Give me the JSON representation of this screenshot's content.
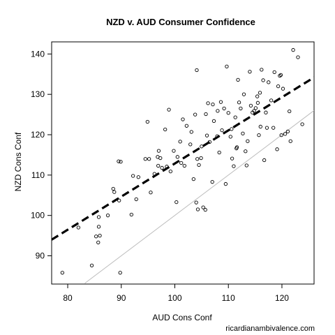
{
  "chart_data": {
    "type": "scatter",
    "title": "NZD v. AUD Consumer Confidence",
    "xlabel": "AUD Cons Conf",
    "ylabel": "NZD Cons Conf",
    "xlim": [
      77,
      126
    ],
    "ylim": [
      83,
      143
    ],
    "xticks": [
      80,
      90,
      100,
      110,
      120
    ],
    "yticks": [
      90,
      100,
      110,
      120,
      130,
      140
    ],
    "grid": false,
    "legend": "none",
    "points": [
      [
        79,
        85.8
      ],
      [
        82,
        97
      ],
      [
        84.5,
        87.6
      ],
      [
        85.3,
        94.8
      ],
      [
        85.8,
        99.6
      ],
      [
        85.8,
        97.2
      ],
      [
        85.7,
        93.3
      ],
      [
        86,
        95
      ],
      [
        87.5,
        100
      ],
      [
        88.5,
        106.6
      ],
      [
        88.7,
        105.8
      ],
      [
        89.6,
        103.7
      ],
      [
        89.5,
        113.4
      ],
      [
        89.9,
        113.3
      ],
      [
        89.8,
        85.8
      ],
      [
        91.9,
        100.2
      ],
      [
        92.2,
        109.8
      ],
      [
        92.8,
        104
      ],
      [
        93.2,
        109.5
      ],
      [
        94.5,
        114
      ],
      [
        94.9,
        123.2
      ],
      [
        95.2,
        114
      ],
      [
        95.5,
        105.7
      ],
      [
        96.2,
        110.3
      ],
      [
        96.8,
        114.5
      ],
      [
        96.9,
        112.3
      ],
      [
        97,
        116
      ],
      [
        97.3,
        114.2
      ],
      [
        97.6,
        111.8
      ],
      [
        98.2,
        121.3
      ],
      [
        98.5,
        112.1
      ],
      [
        98.9,
        126.2
      ],
      [
        99.2,
        110.9
      ],
      [
        99.8,
        116
      ],
      [
        100.3,
        103.3
      ],
      [
        100.5,
        114.5
      ],
      [
        101,
        118.3
      ],
      [
        101.2,
        113
      ],
      [
        101.5,
        123.8
      ],
      [
        101.8,
        112.3
      ],
      [
        102.2,
        122.2
      ],
      [
        102.9,
        117.6
      ],
      [
        103.1,
        120.7
      ],
      [
        103.5,
        109
      ],
      [
        103.8,
        125
      ],
      [
        104,
        103.2
      ],
      [
        104.1,
        136
      ],
      [
        104.2,
        114
      ],
      [
        104.3,
        101.5
      ],
      [
        104.5,
        112.5
      ],
      [
        104.9,
        114.2
      ],
      [
        105,
        117.1
      ],
      [
        105.3,
        102
      ],
      [
        105.7,
        101.4
      ],
      [
        105.8,
        125.1
      ],
      [
        106,
        119.8
      ],
      [
        106.2,
        127.8
      ],
      [
        106.5,
        118.2
      ],
      [
        107,
        108.3
      ],
      [
        107.1,
        127.5
      ],
      [
        107.3,
        123.4
      ],
      [
        107.9,
        119.6
      ],
      [
        108,
        125.9
      ],
      [
        108.3,
        115.6
      ],
      [
        108.6,
        128.1
      ],
      [
        108.8,
        121.1
      ],
      [
        109.2,
        126.5
      ],
      [
        109.5,
        107.8
      ],
      [
        109.7,
        136.9
      ],
      [
        110,
        125.4
      ],
      [
        110.4,
        119.5
      ],
      [
        110.6,
        121.4
      ],
      [
        110.7,
        114.1
      ],
      [
        111,
        112.2
      ],
      [
        111.3,
        124.3
      ],
      [
        111.5,
        116.6
      ],
      [
        111.6,
        116.9
      ],
      [
        111.8,
        133.6
      ],
      [
        112,
        128
      ],
      [
        112.3,
        126.5
      ],
      [
        112.7,
        120.3
      ],
      [
        112.9,
        130
      ],
      [
        113.2,
        115.9
      ],
      [
        113.4,
        112.4
      ],
      [
        113.6,
        118.4
      ],
      [
        114,
        135.6
      ],
      [
        114.2,
        127.2
      ],
      [
        114.5,
        125.5
      ],
      [
        114.8,
        125.9
      ],
      [
        115.1,
        126.6
      ],
      [
        115.4,
        129.5
      ],
      [
        115.5,
        127.9
      ],
      [
        115.7,
        119.9
      ],
      [
        115.9,
        130.4
      ],
      [
        116,
        122
      ],
      [
        116.2,
        136.1
      ],
      [
        116.5,
        133.5
      ],
      [
        116.7,
        113.7
      ],
      [
        117,
        125.5
      ],
      [
        117.2,
        121.7
      ],
      [
        117.5,
        133
      ],
      [
        118,
        128.5
      ],
      [
        118.4,
        121.7
      ],
      [
        118.6,
        135.5
      ],
      [
        119.1,
        116.4
      ],
      [
        119.3,
        132
      ],
      [
        119.6,
        134.6
      ],
      [
        119.8,
        134.8
      ],
      [
        119.9,
        119.9
      ],
      [
        120.2,
        131.4
      ],
      [
        120.6,
        120.2
      ],
      [
        121.1,
        120.8
      ],
      [
        121.4,
        125.8
      ],
      [
        121.6,
        118.4
      ],
      [
        122.1,
        141
      ],
      [
        123,
        139.2
      ],
      [
        123.8,
        122.6
      ]
    ],
    "lines": [
      {
        "style": "dashed",
        "color": "#000000",
        "x": [
          77,
          126
        ],
        "y": [
          94,
          134.2
        ]
      },
      {
        "style": "solid",
        "color": "#bdbdbd",
        "x": [
          83.2,
          126
        ],
        "y": [
          83.2,
          126
        ]
      }
    ]
  },
  "watermark": "ricardianambivalence.com"
}
